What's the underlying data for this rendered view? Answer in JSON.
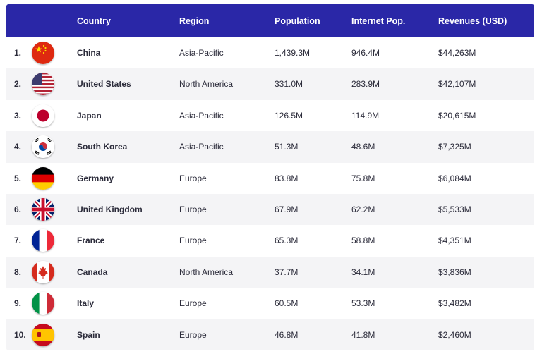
{
  "header": {
    "country": "Country",
    "region": "Region",
    "population": "Population",
    "internet_pop": "Internet Pop.",
    "revenues": "Revenues (USD)"
  },
  "rows": [
    {
      "rank": "1.",
      "country": "China",
      "flag": "china-flag-icon",
      "region": "Asia-Pacific",
      "population": "1,439.3M",
      "internet_pop": "946.4M",
      "revenues": "$44,263M"
    },
    {
      "rank": "2.",
      "country": "United States",
      "flag": "united-states-flag-icon",
      "region": "North America",
      "population": "331.0M",
      "internet_pop": "283.9M",
      "revenues": "$42,107M"
    },
    {
      "rank": "3.",
      "country": "Japan",
      "flag": "japan-flag-icon",
      "region": "Asia-Pacific",
      "population": "126.5M",
      "internet_pop": "114.9M",
      "revenues": "$20,615M"
    },
    {
      "rank": "4.",
      "country": "South Korea",
      "flag": "south-korea-flag-icon",
      "region": "Asia-Pacific",
      "population": "51.3M",
      "internet_pop": "48.6M",
      "revenues": "$7,325M"
    },
    {
      "rank": "5.",
      "country": "Germany",
      "flag": "germany-flag-icon",
      "region": "Europe",
      "population": "83.8M",
      "internet_pop": "75.8M",
      "revenues": "$6,084M"
    },
    {
      "rank": "6.",
      "country": "United Kingdom",
      "flag": "united-kingdom-flag-icon",
      "region": "Europe",
      "population": "67.9M",
      "internet_pop": "62.2M",
      "revenues": "$5,533M"
    },
    {
      "rank": "7.",
      "country": "France",
      "flag": "france-flag-icon",
      "region": "Europe",
      "population": "65.3M",
      "internet_pop": "58.8M",
      "revenues": "$4,351M"
    },
    {
      "rank": "8.",
      "country": "Canada",
      "flag": "canada-flag-icon",
      "region": "North America",
      "population": "37.7M",
      "internet_pop": "34.1M",
      "revenues": "$3,836M"
    },
    {
      "rank": "9.",
      "country": "Italy",
      "flag": "italy-flag-icon",
      "region": "Europe",
      "population": "60.5M",
      "internet_pop": "53.3M",
      "revenues": "$3,482M"
    },
    {
      "rank": "10.",
      "country": "Spain",
      "flag": "spain-flag-icon",
      "region": "Europe",
      "population": "46.8M",
      "internet_pop": "41.8M",
      "revenues": "$2,460M"
    }
  ],
  "colors": {
    "header_bg": "#2a27a7",
    "row_alt_bg": "#f4f4f6"
  }
}
